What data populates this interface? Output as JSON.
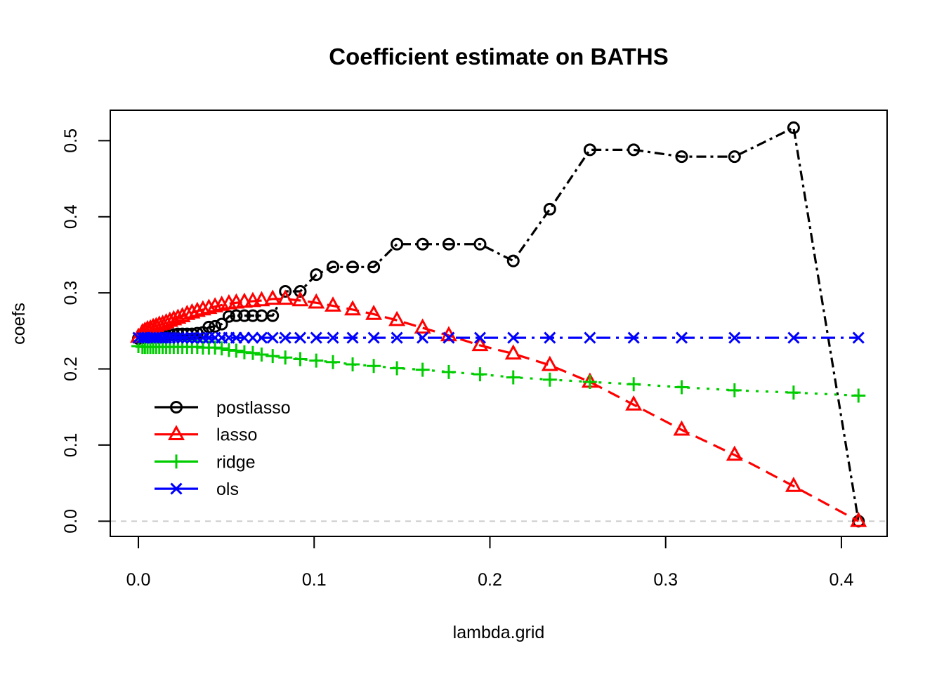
{
  "chart_data": {
    "type": "line",
    "title": "Coefficient estimate on BATHS",
    "xlabel": "lambda.grid",
    "ylabel": "coefs",
    "xlim": [
      -0.016,
      0.426
    ],
    "ylim": [
      -0.02,
      0.54
    ],
    "xticks": [
      0.0,
      0.1,
      0.2,
      0.3,
      0.4
    ],
    "yticks": [
      0.0,
      0.1,
      0.2,
      0.3,
      0.4,
      0.5
    ],
    "xtick_labels": [
      "0.0",
      "0.1",
      "0.2",
      "0.3",
      "0.4"
    ],
    "ytick_labels": [
      "0.0",
      "0.1",
      "0.2",
      "0.3",
      "0.4",
      "0.5"
    ],
    "reference_line": {
      "y": 0.0,
      "color": "#cccccc",
      "style": "dashed"
    },
    "legend": {
      "position": "bottom-left"
    },
    "x": [
      0.0,
      0.0023,
      0.0037,
      0.0052,
      0.0068,
      0.0084,
      0.0101,
      0.0119,
      0.0138,
      0.0158,
      0.0179,
      0.0201,
      0.0225,
      0.025,
      0.0277,
      0.0305,
      0.0335,
      0.0367,
      0.0401,
      0.0436,
      0.0474,
      0.0515,
      0.0557,
      0.0603,
      0.0651,
      0.0701,
      0.0764,
      0.0836,
      0.0921,
      0.1012,
      0.1107,
      0.1219,
      0.1339,
      0.1471,
      0.1617,
      0.1766,
      0.1944,
      0.2133,
      0.2341,
      0.2569,
      0.2818,
      0.3091,
      0.3392,
      0.3728,
      0.4097
    ],
    "series": [
      {
        "name": "postlasso",
        "color": "#000000",
        "marker": "circle",
        "dash": "4,6,14,6",
        "values": [
          0.24,
          0.241,
          0.242,
          0.242,
          0.243,
          0.243,
          0.243,
          0.244,
          0.244,
          0.244,
          0.245,
          0.245,
          0.246,
          0.246,
          0.246,
          0.246,
          0.247,
          0.248,
          0.255,
          0.256,
          0.259,
          0.269,
          0.27,
          0.27,
          0.27,
          0.27,
          0.27,
          0.302,
          0.302,
          0.324,
          0.334,
          0.334,
          0.334,
          0.364,
          0.364,
          0.364,
          0.364,
          0.342,
          0.41,
          0.488,
          0.488,
          0.479,
          0.479,
          0.517,
          0.0
        ]
      },
      {
        "name": "lasso",
        "color": "#ff0000",
        "marker": "triangle",
        "dash": "18,10",
        "values": [
          0.242,
          0.248,
          0.25,
          0.252,
          0.253,
          0.255,
          0.256,
          0.258,
          0.259,
          0.261,
          0.263,
          0.265,
          0.267,
          0.269,
          0.272,
          0.274,
          0.276,
          0.278,
          0.28,
          0.282,
          0.284,
          0.286,
          0.287,
          0.288,
          0.289,
          0.29,
          0.292,
          0.292,
          0.29,
          0.287,
          0.283,
          0.278,
          0.272,
          0.264,
          0.254,
          0.244,
          0.231,
          0.22,
          0.205,
          0.183,
          0.153,
          0.12,
          0.087,
          0.046,
          0.0
        ]
      },
      {
        "name": "ridge",
        "color": "#00cd00",
        "marker": "plus",
        "dash": "4,10",
        "values": [
          0.23,
          0.229,
          0.229,
          0.229,
          0.229,
          0.229,
          0.229,
          0.229,
          0.229,
          0.229,
          0.229,
          0.229,
          0.229,
          0.229,
          0.229,
          0.229,
          0.229,
          0.228,
          0.228,
          0.228,
          0.227,
          0.225,
          0.224,
          0.222,
          0.221,
          0.219,
          0.217,
          0.215,
          0.213,
          0.211,
          0.209,
          0.206,
          0.204,
          0.201,
          0.199,
          0.196,
          0.193,
          0.189,
          0.186,
          0.183,
          0.18,
          0.176,
          0.172,
          0.169,
          0.165
        ]
      },
      {
        "name": "ols",
        "color": "#0000ff",
        "marker": "x",
        "dash": "4,8,20,8",
        "values": [
          0.241,
          0.241,
          0.241,
          0.241,
          0.241,
          0.241,
          0.241,
          0.241,
          0.241,
          0.241,
          0.241,
          0.241,
          0.241,
          0.241,
          0.241,
          0.241,
          0.241,
          0.241,
          0.241,
          0.241,
          0.241,
          0.241,
          0.241,
          0.241,
          0.241,
          0.241,
          0.241,
          0.241,
          0.241,
          0.241,
          0.241,
          0.241,
          0.241,
          0.241,
          0.241,
          0.241,
          0.241,
          0.241,
          0.241,
          0.241,
          0.241,
          0.241,
          0.241,
          0.241,
          0.241
        ]
      }
    ]
  }
}
